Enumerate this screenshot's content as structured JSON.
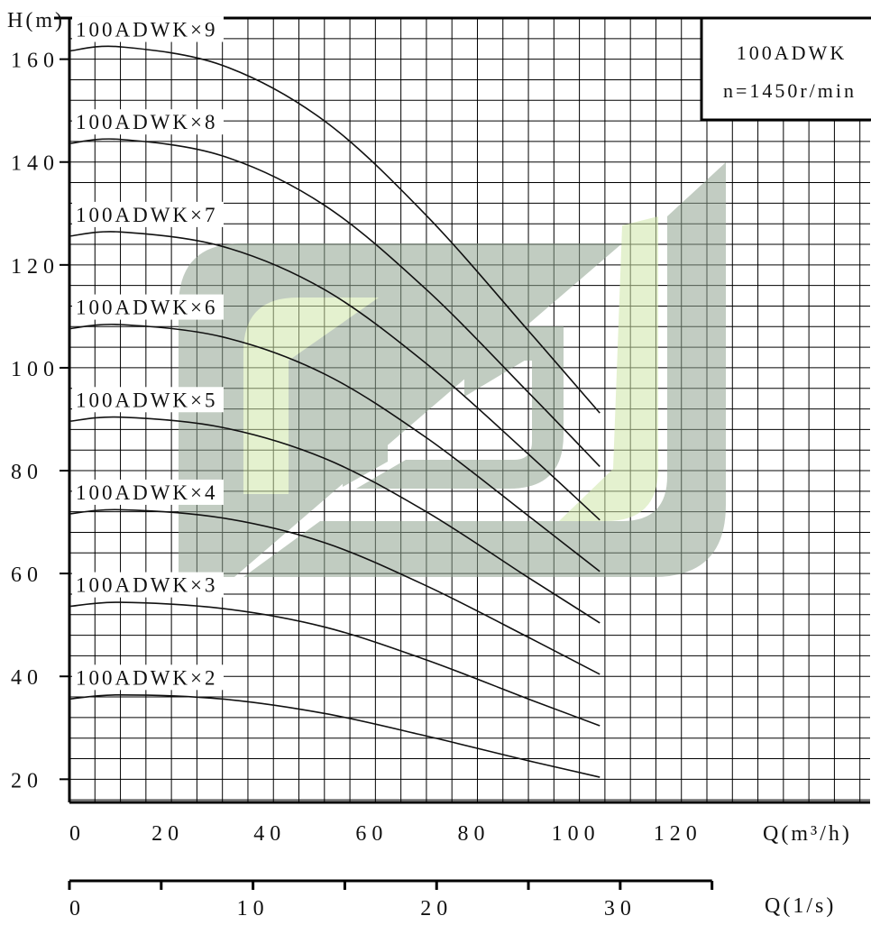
{
  "chart_data": {
    "type": "line",
    "title": "",
    "box": {
      "line1": "100ADWK",
      "line2": "n=1450r/min"
    },
    "ylabel": "H(m)",
    "xlabel": "Q(m³/h)",
    "xlabel2": "Q(1/s)",
    "xlim": [
      0,
      157
    ],
    "ylim": [
      15.5,
      168
    ],
    "grid": true,
    "y_ticks": [
      20,
      40,
      60,
      80,
      100,
      120,
      140,
      160
    ],
    "x_ticks": [
      0,
      20,
      40,
      60,
      80,
      100,
      120
    ],
    "x2_ticks": [
      0,
      10,
      20,
      30
    ],
    "series": [
      {
        "name": "100ADWK×2",
        "x": [
          0,
          10,
          30,
          50,
          70,
          90,
          104
        ],
        "y": [
          35.6,
          36.4,
          35.6,
          32.8,
          28.4,
          23.6,
          20.4
        ]
      },
      {
        "name": "100ADWK×3",
        "x": [
          0,
          10,
          30,
          50,
          70,
          90,
          104
        ],
        "y": [
          53.6,
          54.4,
          53.2,
          49.6,
          43.2,
          35.6,
          30.4
        ]
      },
      {
        "name": "100ADWK×4",
        "x": [
          0,
          10,
          30,
          50,
          70,
          90,
          104
        ],
        "y": [
          71.6,
          72.4,
          70.8,
          66.0,
          57.6,
          47.6,
          40.4
        ]
      },
      {
        "name": "100ADWK×5",
        "x": [
          0,
          10,
          30,
          50,
          70,
          90,
          104
        ],
        "y": [
          89.6,
          90.4,
          88.4,
          82.4,
          72.0,
          59.2,
          50.4
        ]
      },
      {
        "name": "100ADWK×6",
        "x": [
          0,
          10,
          30,
          50,
          70,
          90,
          104
        ],
        "y": [
          107.6,
          108.4,
          106.0,
          98.8,
          86.4,
          71.2,
          60.4
        ]
      },
      {
        "name": "100ADWK×7",
        "x": [
          0,
          10,
          30,
          50,
          70,
          90,
          104
        ],
        "y": [
          125.6,
          126.4,
          123.6,
          115.2,
          100.8,
          83.2,
          70.4
        ]
      },
      {
        "name": "100ADWK×8",
        "x": [
          0,
          10,
          30,
          50,
          70,
          90,
          104
        ],
        "y": [
          143.6,
          144.4,
          141.2,
          131.6,
          115.2,
          95.2,
          80.8
        ]
      },
      {
        "name": "100ADWK×9",
        "x": [
          0,
          10,
          30,
          50,
          70,
          90,
          104
        ],
        "y": [
          161.6,
          162.4,
          158.8,
          148.0,
          129.6,
          107.2,
          91.2
        ]
      }
    ]
  },
  "watermark_colors": {
    "gray": "#8fa38f",
    "green": "#cfe6a8"
  }
}
